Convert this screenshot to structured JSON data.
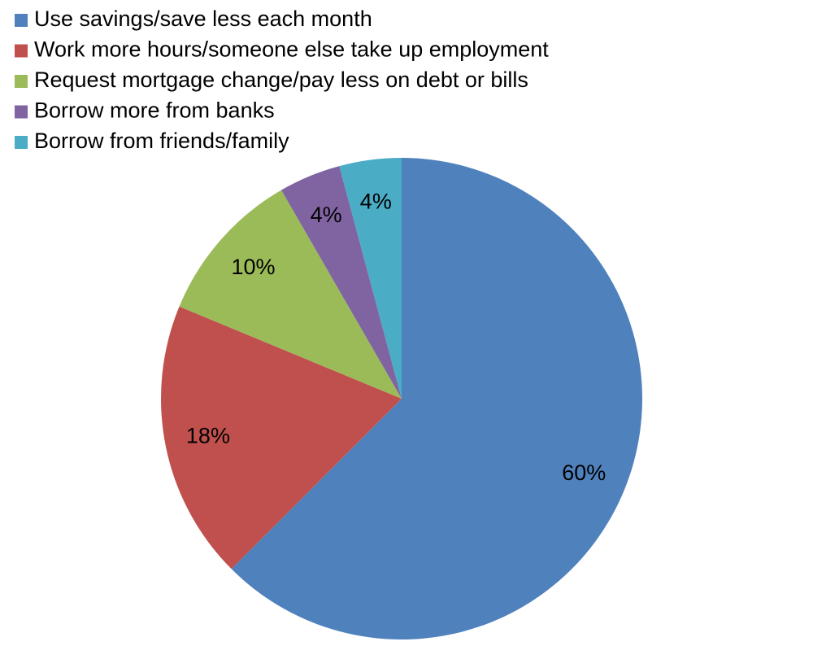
{
  "chart_data": {
    "type": "pie",
    "categories": [
      "Use savings/save less each month",
      "Work more hours/someone else take up employment",
      "Request mortgage change/pay less on debt or bills",
      "Borrow more from banks",
      "Borrow from friends/family"
    ],
    "values": [
      60,
      18,
      10,
      4,
      4
    ],
    "value_labels": [
      "60%",
      "18%",
      "10%",
      "4%",
      "4%"
    ],
    "colors": [
      "#4f81bd",
      "#c0504d",
      "#9bbb59",
      "#8064a2",
      "#4bacc6"
    ],
    "legend": "top-left"
  }
}
